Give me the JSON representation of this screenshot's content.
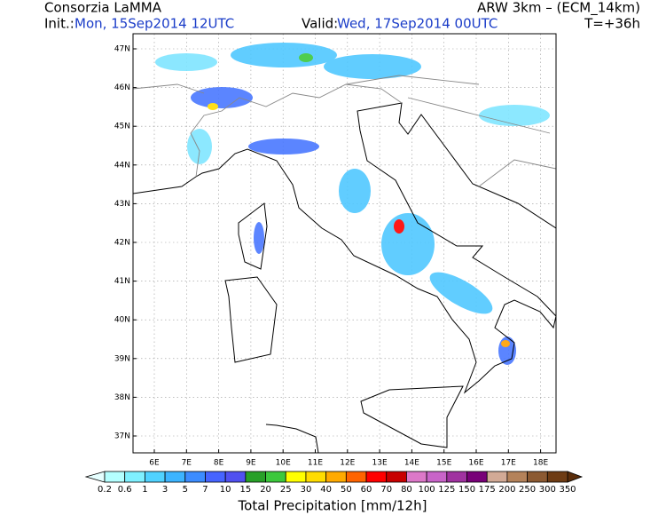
{
  "header": {
    "title": "Consorzia LaMMA",
    "model": "ARW 3km – (ECM_14km)",
    "init_label": "Init.:",
    "init_time": "Mon, 15Sep2014 12UTC",
    "valid_label": "Valid:",
    "valid_time": "Wed, 17Sep2014 00UTC",
    "lead_time": "T=+36h"
  },
  "map": {
    "lon_labels": [
      "6E",
      "7E",
      "8E",
      "9E",
      "10E",
      "11E",
      "12E",
      "13E",
      "14E",
      "15E",
      "16E",
      "17E",
      "18E"
    ],
    "lat_labels": [
      "47N",
      "46N",
      "45N",
      "44N",
      "43N",
      "42N",
      "41N",
      "40N",
      "39N",
      "38N",
      "37N"
    ]
  },
  "colorbar": {
    "labels": [
      "0.2",
      "0.6",
      "1",
      "3",
      "5",
      "7",
      "10",
      "15",
      "20",
      "25",
      "30",
      "40",
      "50",
      "60",
      "70",
      "80",
      "100",
      "125",
      "150",
      "175",
      "200",
      "250",
      "300",
      "350"
    ],
    "title": "Total Precipitation [mm/12h]"
  }
}
